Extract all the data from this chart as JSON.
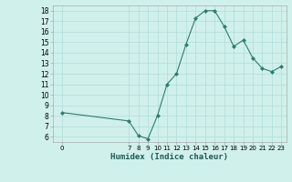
{
  "x": [
    0,
    7,
    8,
    9,
    10,
    11,
    12,
    13,
    14,
    15,
    16,
    17,
    18,
    19,
    20,
    21,
    22,
    23
  ],
  "y": [
    8.3,
    7.5,
    6.1,
    5.8,
    8.0,
    11.0,
    12.0,
    14.8,
    17.3,
    18.0,
    18.0,
    16.5,
    14.6,
    15.2,
    13.5,
    12.5,
    12.2,
    12.7
  ],
  "line_color": "#2d7d6e",
  "marker_color": "#2d7d6e",
  "bg_color": "#d0f0ec",
  "grid_color": "#b0ddd8",
  "xlabel": "Humidex (Indice chaleur)",
  "ylim": [
    5.5,
    18.5
  ],
  "yticks": [
    6,
    7,
    8,
    9,
    10,
    11,
    12,
    13,
    14,
    15,
    16,
    17,
    18
  ],
  "xticks": [
    0,
    7,
    8,
    9,
    10,
    11,
    12,
    13,
    14,
    15,
    16,
    17,
    18,
    19,
    20,
    21,
    22,
    23
  ],
  "xlim": [
    -1,
    23.5
  ]
}
